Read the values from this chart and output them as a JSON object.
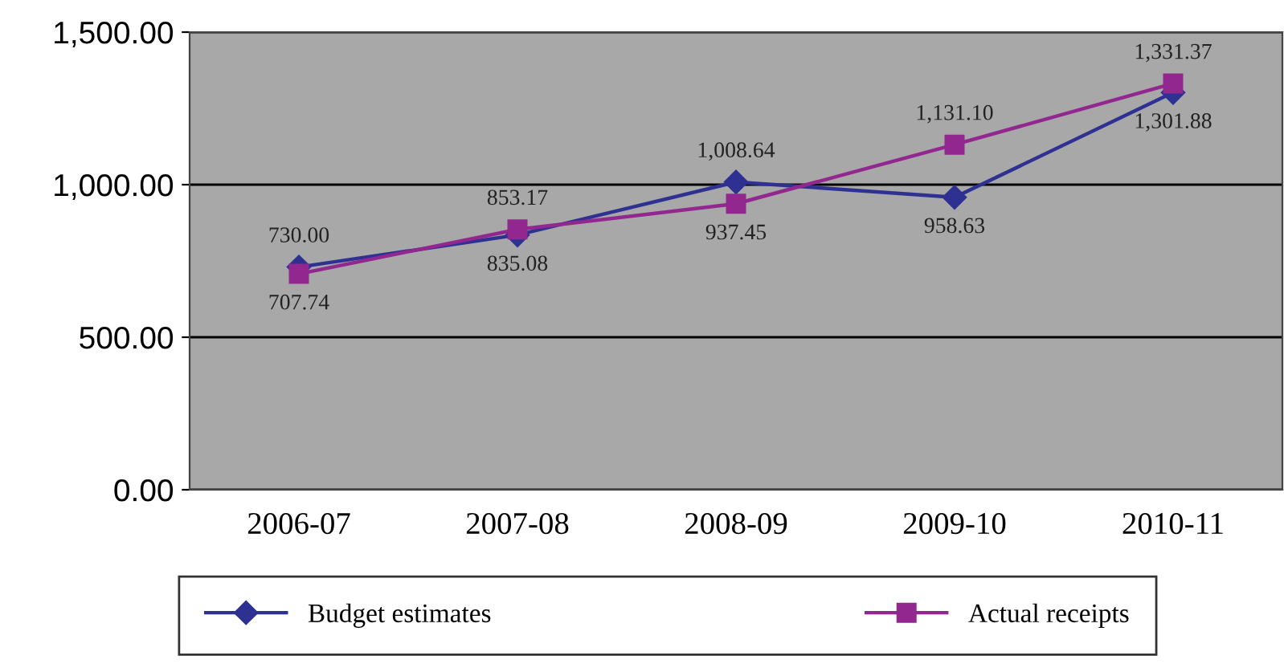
{
  "chart_data": {
    "type": "line",
    "categories": [
      "2006-07",
      "2007-08",
      "2008-09",
      "2009-10",
      "2010-11"
    ],
    "series": [
      {
        "name": "Budget estimates",
        "color": "#2e3192",
        "marker": "diamond",
        "values": [
          730.0,
          835.08,
          1008.64,
          958.63,
          1301.88
        ],
        "value_labels": [
          "730.00",
          "835.08",
          "1,008.64",
          "958.63",
          "1,301.88"
        ]
      },
      {
        "name": "Actual receipts",
        "color": "#92278f",
        "marker": "square",
        "values": [
          707.74,
          853.17,
          937.45,
          1131.1,
          1331.37
        ],
        "value_labels": [
          "707.74",
          "853.17",
          "937.45",
          "1,131.10",
          "1,331.37"
        ]
      }
    ],
    "ylim": [
      0,
      1500
    ],
    "yticks": [
      {
        "value": 0,
        "label": "0.00"
      },
      {
        "value": 500,
        "label": "500.00"
      },
      {
        "value": 1000,
        "label": "1,000.00"
      },
      {
        "value": 1500,
        "label": "1,500.00"
      }
    ],
    "grid": "y",
    "legend": "bottom",
    "line_style": "solid"
  }
}
